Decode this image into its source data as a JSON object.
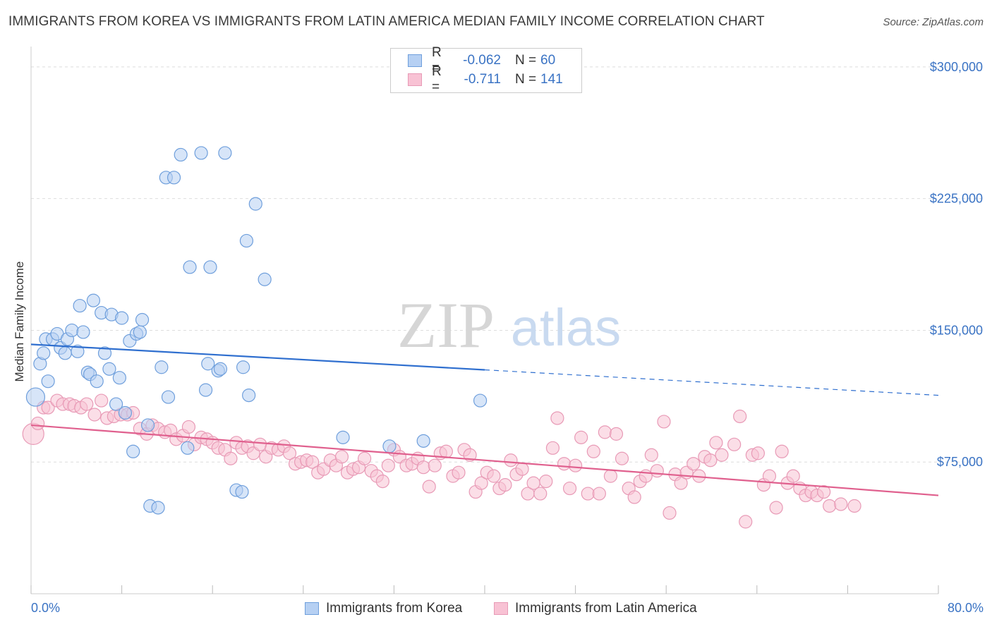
{
  "title": "IMMIGRANTS FROM KOREA VS IMMIGRANTS FROM LATIN AMERICA MEDIAN FAMILY INCOME CORRELATION CHART",
  "source": "Source: ZipAtlas.com",
  "watermark": {
    "zip": "ZIP",
    "atlas": "atlas"
  },
  "colors": {
    "korea_fill": "#b6d0f3",
    "korea_stroke": "#6f9fdc",
    "korea_line": "#2f6fcf",
    "latam_fill": "#f8c2d4",
    "latam_stroke": "#e89ab6",
    "latam_line": "#e0608e",
    "axis_text": "#3a73c4",
    "grid": "#dddddd"
  },
  "legend": {
    "rows": [
      {
        "r_label": "R =",
        "r_value": "-0.062",
        "n_label": "N =",
        "n_value": "60"
      },
      {
        "r_label": "R =",
        "r_value": "-0.711",
        "n_label": "N =",
        "n_value": "141"
      }
    ]
  },
  "bottom_legend": {
    "korea": "Immigrants from Korea",
    "latam": "Immigrants from Latin America"
  },
  "x_axis": {
    "min_label": "0.0%",
    "max_label": "80.0%"
  },
  "chart_data": {
    "type": "scatter",
    "title": "IMMIGRANTS FROM KOREA VS IMMIGRANTS FROM LATIN AMERICA MEDIAN FAMILY INCOME CORRELATION CHART",
    "xlabel": "",
    "ylabel": "Median Family Income",
    "xlim": [
      0,
      80
    ],
    "ylim": [
      0,
      310000
    ],
    "yticks": [
      75000,
      150000,
      225000,
      300000
    ],
    "ytick_labels": [
      "$75,000",
      "$150,000",
      "$225,000",
      "$300,000"
    ],
    "grid": true,
    "legend_position": "top-center",
    "series": [
      {
        "name": "Immigrants from Korea",
        "stats": {
          "R": -0.062,
          "N": 60
        },
        "trend": {
          "x0": 0,
          "y0": 142000,
          "x1": 40,
          "y1": 127500,
          "dashed_to": 80,
          "y_end": 113000
        },
        "points": [
          [
            0.4,
            112000,
            13
          ],
          [
            0.8,
            131000,
            9
          ],
          [
            1.1,
            137000,
            9
          ],
          [
            1.3,
            145000,
            9
          ],
          [
            1.5,
            121000,
            9
          ],
          [
            1.9,
            145000,
            9
          ],
          [
            2.3,
            148000,
            9
          ],
          [
            2.6,
            140000,
            9
          ],
          [
            3.0,
            137000,
            9
          ],
          [
            3.2,
            145000,
            9
          ],
          [
            3.6,
            150000,
            9
          ],
          [
            4.1,
            138000,
            9
          ],
          [
            4.3,
            164000,
            9
          ],
          [
            4.6,
            149000,
            9
          ],
          [
            5.0,
            126000,
            9
          ],
          [
            5.2,
            125000,
            9
          ],
          [
            5.5,
            167000,
            9
          ],
          [
            5.8,
            121000,
            9
          ],
          [
            6.2,
            160000,
            9
          ],
          [
            6.5,
            137000,
            9
          ],
          [
            6.9,
            128000,
            9
          ],
          [
            7.1,
            159000,
            9
          ],
          [
            7.5,
            108000,
            9
          ],
          [
            7.8,
            123000,
            9
          ],
          [
            8.0,
            157000,
            9
          ],
          [
            8.3,
            103000,
            9
          ],
          [
            8.7,
            144000,
            9
          ],
          [
            9.0,
            81000,
            9
          ],
          [
            9.3,
            148000,
            9
          ],
          [
            9.6,
            149000,
            9
          ],
          [
            9.8,
            156000,
            9
          ],
          [
            10.3,
            96000,
            9
          ],
          [
            10.5,
            50000,
            9
          ],
          [
            11.2,
            49000,
            9
          ],
          [
            11.5,
            129000,
            9
          ],
          [
            11.9,
            237000,
            9
          ],
          [
            12.1,
            112000,
            9
          ],
          [
            12.6,
            237000,
            9
          ],
          [
            13.2,
            250000,
            9
          ],
          [
            13.8,
            83000,
            9
          ],
          [
            14.0,
            186000,
            9
          ],
          [
            15.0,
            251000,
            9
          ],
          [
            15.4,
            116000,
            9
          ],
          [
            15.6,
            131000,
            9
          ],
          [
            15.8,
            186000,
            9
          ],
          [
            16.5,
            127000,
            9
          ],
          [
            16.7,
            128000,
            9
          ],
          [
            17.1,
            251000,
            9
          ],
          [
            18.1,
            59000,
            9
          ],
          [
            18.6,
            58000,
            9
          ],
          [
            18.7,
            129000,
            9
          ],
          [
            19.0,
            201000,
            9
          ],
          [
            19.2,
            113000,
            9
          ],
          [
            19.8,
            222000,
            9
          ],
          [
            20.6,
            179000,
            9
          ],
          [
            27.5,
            89000,
            9
          ],
          [
            31.6,
            84000,
            9
          ],
          [
            34.6,
            87000,
            9
          ],
          [
            39.6,
            110000,
            9
          ]
        ]
      },
      {
        "name": "Immigrants from Latin America",
        "stats": {
          "R": -0.711,
          "N": 141
        },
        "trend": {
          "x0": 0,
          "y0": 96000,
          "x1": 80,
          "y1": 56000
        },
        "points": [
          [
            0.2,
            91000,
            15
          ],
          [
            0.6,
            97000,
            9
          ],
          [
            1.1,
            106000,
            9
          ],
          [
            1.5,
            106000,
            9
          ],
          [
            2.3,
            110000,
            9
          ],
          [
            2.8,
            108000,
            9
          ],
          [
            3.4,
            108000,
            9
          ],
          [
            3.8,
            107000,
            9
          ],
          [
            4.4,
            106000,
            9
          ],
          [
            4.9,
            108000,
            9
          ],
          [
            5.6,
            102000,
            9
          ],
          [
            6.2,
            110000,
            9
          ],
          [
            6.7,
            100000,
            9
          ],
          [
            7.3,
            101000,
            9
          ],
          [
            7.9,
            102000,
            9
          ],
          [
            8.5,
            102000,
            9
          ],
          [
            9.0,
            103000,
            9
          ],
          [
            9.6,
            94000,
            9
          ],
          [
            10.2,
            91000,
            9
          ],
          [
            10.7,
            96000,
            9
          ],
          [
            11.2,
            94000,
            9
          ],
          [
            11.8,
            92000,
            9
          ],
          [
            12.3,
            93000,
            9
          ],
          [
            12.8,
            88000,
            9
          ],
          [
            13.4,
            90000,
            9
          ],
          [
            13.9,
            95000,
            9
          ],
          [
            14.4,
            85000,
            9
          ],
          [
            15.0,
            89000,
            9
          ],
          [
            15.5,
            88000,
            9
          ],
          [
            16.0,
            86000,
            9
          ],
          [
            16.5,
            83000,
            9
          ],
          [
            17.1,
            82000,
            9
          ],
          [
            17.6,
            77000,
            9
          ],
          [
            18.1,
            86000,
            9
          ],
          [
            18.6,
            83000,
            9
          ],
          [
            19.1,
            84000,
            9
          ],
          [
            19.6,
            80000,
            9
          ],
          [
            20.2,
            85000,
            9
          ],
          [
            20.7,
            78000,
            9
          ],
          [
            21.2,
            83000,
            9
          ],
          [
            21.8,
            82000,
            9
          ],
          [
            22.3,
            84000,
            9
          ],
          [
            22.8,
            80000,
            9
          ],
          [
            23.3,
            74000,
            9
          ],
          [
            23.8,
            75000,
            9
          ],
          [
            24.3,
            76000,
            9
          ],
          [
            24.8,
            75000,
            9
          ],
          [
            25.3,
            69000,
            9
          ],
          [
            25.8,
            71000,
            9
          ],
          [
            26.4,
            76000,
            9
          ],
          [
            26.9,
            73000,
            9
          ],
          [
            27.4,
            78000,
            9
          ],
          [
            27.9,
            69000,
            9
          ],
          [
            28.4,
            71000,
            9
          ],
          [
            28.9,
            72000,
            9
          ],
          [
            29.4,
            77000,
            9
          ],
          [
            30.0,
            70000,
            9
          ],
          [
            30.5,
            67000,
            9
          ],
          [
            31.0,
            64000,
            9
          ],
          [
            31.5,
            73000,
            9
          ],
          [
            32.0,
            82000,
            9
          ],
          [
            32.5,
            78000,
            9
          ],
          [
            33.1,
            73000,
            9
          ],
          [
            33.6,
            74000,
            9
          ],
          [
            34.1,
            77000,
            9
          ],
          [
            34.6,
            72000,
            9
          ],
          [
            35.1,
            61000,
            9
          ],
          [
            35.6,
            73000,
            9
          ],
          [
            36.1,
            80000,
            9
          ],
          [
            36.6,
            81000,
            9
          ],
          [
            37.2,
            67000,
            9
          ],
          [
            37.7,
            69000,
            9
          ],
          [
            38.2,
            82000,
            9
          ],
          [
            38.7,
            79000,
            9
          ],
          [
            39.2,
            58000,
            9
          ],
          [
            39.7,
            63000,
            9
          ],
          [
            40.2,
            69000,
            9
          ],
          [
            40.8,
            67000,
            9
          ],
          [
            41.3,
            60000,
            9
          ],
          [
            41.8,
            62000,
            9
          ],
          [
            42.3,
            76000,
            9
          ],
          [
            42.8,
            68000,
            9
          ],
          [
            43.3,
            71000,
            9
          ],
          [
            43.8,
            57000,
            9
          ],
          [
            44.3,
            63000,
            9
          ],
          [
            44.9,
            57000,
            9
          ],
          [
            45.4,
            64000,
            9
          ],
          [
            46.0,
            83000,
            9
          ],
          [
            46.4,
            100000,
            9
          ],
          [
            47.0,
            74000,
            9
          ],
          [
            47.5,
            60000,
            9
          ],
          [
            48.0,
            73000,
            9
          ],
          [
            48.5,
            89000,
            9
          ],
          [
            49.1,
            57000,
            9
          ],
          [
            49.6,
            81000,
            9
          ],
          [
            50.1,
            57000,
            9
          ],
          [
            50.6,
            92000,
            9
          ],
          [
            51.1,
            67000,
            9
          ],
          [
            51.6,
            91000,
            9
          ],
          [
            52.1,
            77000,
            9
          ],
          [
            52.7,
            60000,
            9
          ],
          [
            53.2,
            55000,
            9
          ],
          [
            53.7,
            64000,
            9
          ],
          [
            54.2,
            67000,
            9
          ],
          [
            54.7,
            79000,
            9
          ],
          [
            55.2,
            70000,
            9
          ],
          [
            55.8,
            98000,
            9
          ],
          [
            56.3,
            46000,
            9
          ],
          [
            56.8,
            68000,
            9
          ],
          [
            57.3,
            63000,
            9
          ],
          [
            57.8,
            69000,
            9
          ],
          [
            58.4,
            74000,
            9
          ],
          [
            58.9,
            67000,
            9
          ],
          [
            59.4,
            78000,
            9
          ],
          [
            59.9,
            76000,
            9
          ],
          [
            60.4,
            86000,
            9
          ],
          [
            60.9,
            79000,
            9
          ],
          [
            62.0,
            85000,
            9
          ],
          [
            62.5,
            101000,
            9
          ],
          [
            63.0,
            41000,
            9
          ],
          [
            63.6,
            79000,
            9
          ],
          [
            64.1,
            80000,
            9
          ],
          [
            64.6,
            62000,
            9
          ],
          [
            65.1,
            67000,
            9
          ],
          [
            65.7,
            49000,
            9
          ],
          [
            66.2,
            81000,
            9
          ],
          [
            66.7,
            63000,
            9
          ],
          [
            67.2,
            67000,
            9
          ],
          [
            67.8,
            60000,
            9
          ],
          [
            68.3,
            56000,
            9
          ],
          [
            68.8,
            58000,
            9
          ],
          [
            69.3,
            56000,
            9
          ],
          [
            69.9,
            58000,
            9
          ],
          [
            70.4,
            50000,
            9
          ],
          [
            71.4,
            51000,
            9
          ],
          [
            72.6,
            50000,
            9
          ]
        ]
      }
    ]
  }
}
